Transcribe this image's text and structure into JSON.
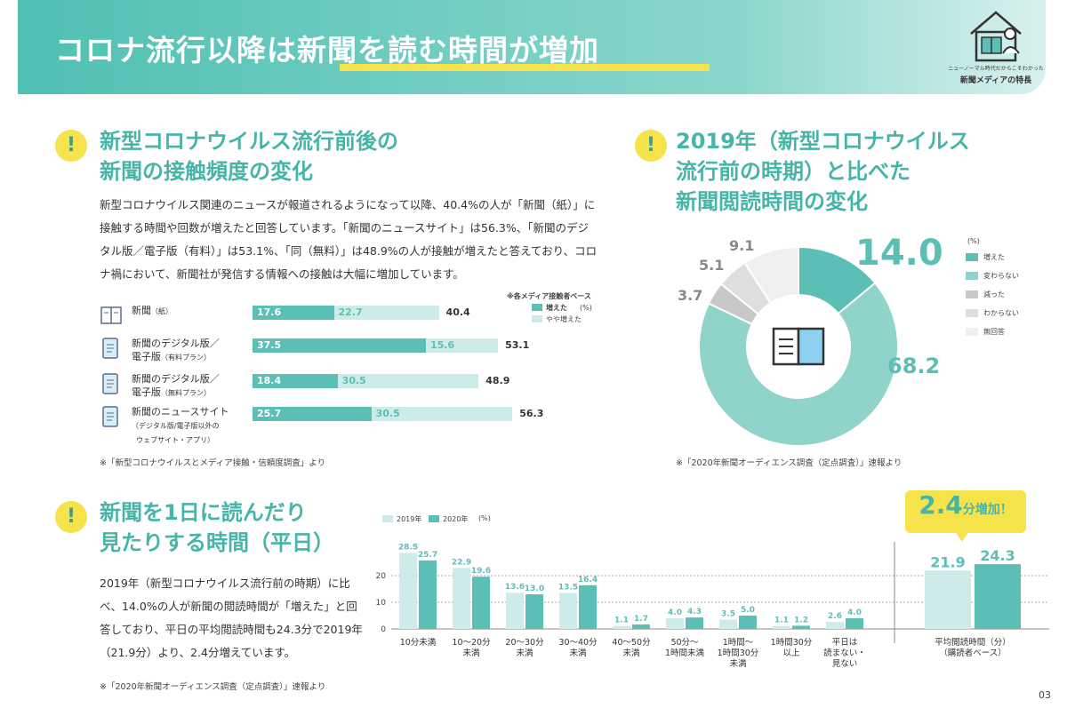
{
  "header": {
    "title": "コロナ流行以降は新聞を読む時間が増加",
    "logo_tagline": "ニューノーマル時代だからこそわかった",
    "logo_name": "新聞メディアの特長"
  },
  "section1": {
    "title_line1": "新型コロナウイルス流行前後の",
    "title_line2": "新聞の接触頻度の変化",
    "body": "新型コロナウイルス関連のニュースが報道されるようになって以降、40.4%の人が「新聞（紙）」に接触する時間や回数が増えたと回答しています。「新聞のニュースサイト」は56.3%、「新聞のデジタル版／電子版（有料）」は53.1%、「同（無料）」は48.9%の人が接触が増えたと答えており、コロナ禍において、新聞社が発信する情報への接触は大幅に増加しています。",
    "base_note": "※各メディア接触者ベース",
    "unit": "(%)",
    "note": "※「新型コロナウイルスとメディア接触・信頼度調査」より"
  },
  "section2": {
    "title_line1": "2019年（新型コロナウイルス",
    "title_line2": "流行前の時期）と比べた",
    "title_line3": "新聞閲読時間の変化",
    "unit": "(%)",
    "note": "※「2020年新聞オーディエンス調査（定点調査）」速報より"
  },
  "section3": {
    "title_line1": "新聞を1日に読んだり",
    "title_line2": "見たりする時間（平日）",
    "body": "2019年（新型コロナウイルス流行前の時期）に比べ、14.0%の人が新聞の閲読時間が「増えた」と回答しており、平日の平均閲読時間も24.3分で2019年（21.9分）より、2.4分増えています。",
    "note": "※「2020年新聞オーディエンス調査（定点調査）」速報より",
    "callout_value": "2.4",
    "callout_text": "分増加！",
    "unit": "(%)"
  },
  "page_number": "03",
  "colors": {
    "teal": "#5bbfb5",
    "light_teal": "#cdebe8",
    "mid_teal": "#8fd3cb",
    "gray": "#c8c8c8",
    "light_gray": "#dedede",
    "pale_gray": "#efefef",
    "yellow": "#f6e24a"
  },
  "chart_data": [
    {
      "type": "bar",
      "orientation": "horizontal",
      "stacked": true,
      "categories": [
        {
          "label": "新聞",
          "sublabel": "（紙）",
          "icon": "newspaper-icon"
        },
        {
          "label": "新聞のデジタル版／",
          "label2": "電子版",
          "sublabel": "（有料プラン）",
          "icon": "digital-paid-icon"
        },
        {
          "label": "新聞のデジタル版／",
          "label2": "電子版",
          "sublabel": "（無料プラン）",
          "icon": "digital-free-icon"
        },
        {
          "label": "新聞のニュースサイト",
          "sublabel": "（デジタル版/電子版以外の",
          "sublabel2": "ウェブサイト・アプリ）",
          "icon": "news-site-icon"
        }
      ],
      "series": [
        {
          "name": "増えた",
          "values": [
            17.6,
            37.5,
            18.4,
            25.7
          ]
        },
        {
          "name": "やや増えた",
          "values": [
            22.7,
            15.6,
            30.5,
            30.5
          ]
        }
      ],
      "totals": [
        40.4,
        53.1,
        48.9,
        56.3
      ]
    },
    {
      "type": "pie",
      "donut": true,
      "slices": [
        {
          "name": "増えた",
          "value": 14.0
        },
        {
          "name": "変わらない",
          "value": 68.2
        },
        {
          "name": "減った",
          "value": 3.7
        },
        {
          "name": "わからない",
          "value": 5.1
        },
        {
          "name": "無回答",
          "value": 9.1
        }
      ]
    },
    {
      "type": "bar",
      "categories": [
        "10分未満",
        "10～20分|未満",
        "20～30分|未満",
        "30～40分|未満",
        "40～50分|未満",
        "50分～|1時間未満",
        "1時間～|1時間30分|未満",
        "1時間30分|以上",
        "平日は|読まない・|見ない"
      ],
      "series": [
        {
          "name": "2019年",
          "values": [
            28.5,
            22.9,
            13.6,
            13.5,
            1.1,
            4.0,
            3.5,
            1.1,
            2.6
          ]
        },
        {
          "name": "2020年",
          "values": [
            25.7,
            19.6,
            13.0,
            16.4,
            1.7,
            4.3,
            5.0,
            1.2,
            4.0
          ]
        }
      ],
      "ylim": [
        0,
        30
      ],
      "yticks": [
        0,
        10,
        20
      ],
      "average": {
        "label": "平均閲読時間（分）|（購読者ベース）",
        "values": [
          21.9,
          24.3
        ]
      }
    }
  ]
}
